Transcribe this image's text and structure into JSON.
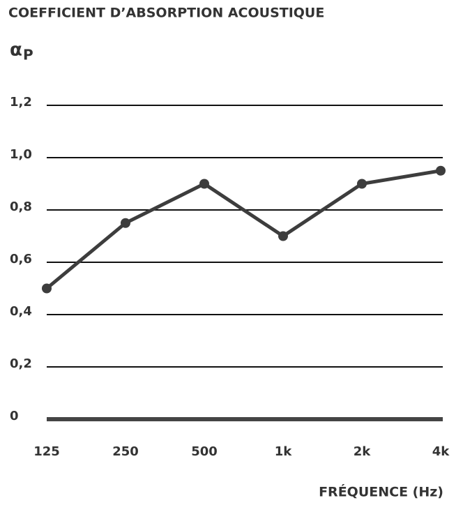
{
  "chart_data": {
    "type": "line",
    "title": "COEFFICIENT D’ABSORPTION ACOUSTIQUE",
    "y_label": {
      "symbol": "α",
      "subscript": "P"
    },
    "x_label": "FRÉQUENCE (Hz)",
    "categories": [
      "125",
      "250",
      "500",
      "1k",
      "2k",
      "4k"
    ],
    "values": [
      0.5,
      0.75,
      0.9,
      0.7,
      0.9,
      0.95
    ],
    "color": "#3d3d3d",
    "ylim": [
      0,
      1.2
    ],
    "yticks": [
      0,
      {
        "value": 0.2,
        "label": "0,2"
      },
      {
        "value": 0.4,
        "label": "0,4"
      },
      {
        "value": 0.6,
        "label": "0,6"
      },
      {
        "value": 0.8,
        "label": "0,8"
      },
      {
        "value": 1.0,
        "label": "1,0"
      },
      {
        "value": 1.2,
        "label": "1,2"
      }
    ],
    "grid": true
  }
}
